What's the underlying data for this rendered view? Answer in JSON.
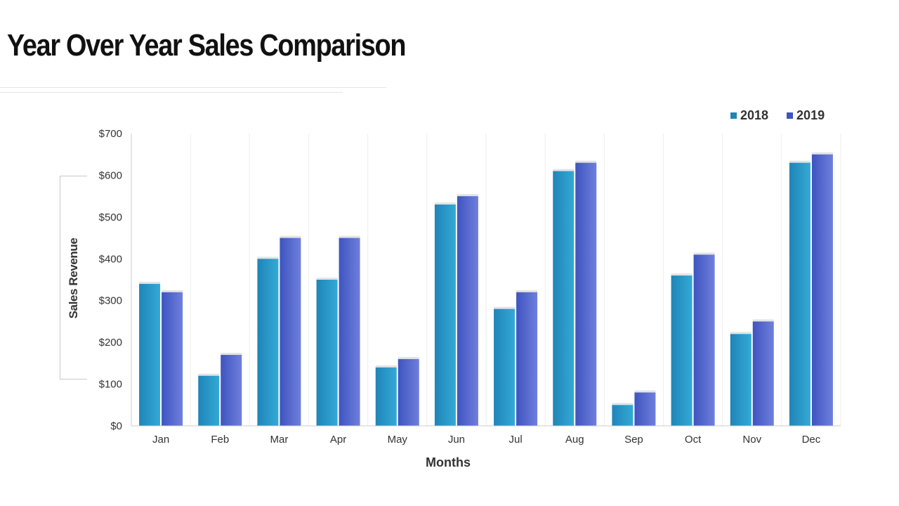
{
  "page": {
    "title": "Year Over Year Sales Comparison"
  },
  "colors": {
    "series_2018_light": "#34a9d6",
    "series_2018_dark": "#1f85b8",
    "series_2019_light": "#6f7fdc",
    "series_2019_dark": "#3e54c0",
    "grid": "#eeeeee",
    "axis": "#cccccc"
  },
  "chart_data": {
    "type": "bar",
    "categories": [
      "Jan",
      "Feb",
      "Mar",
      "Apr",
      "May",
      "Jun",
      "Jul",
      "Aug",
      "Sep",
      "Oct",
      "Nov",
      "Dec"
    ],
    "series": [
      {
        "name": "2018",
        "values": [
          340,
          120,
          400,
          350,
          140,
          530,
          280,
          610,
          50,
          360,
          220,
          630
        ]
      },
      {
        "name": "2019",
        "values": [
          320,
          170,
          450,
          450,
          160,
          550,
          320,
          630,
          80,
          410,
          250,
          650
        ]
      }
    ],
    "xlabel": "Months",
    "ylabel": "Sales Revenue",
    "ylim": [
      0,
      700
    ],
    "yticks": [
      0,
      100,
      200,
      300,
      400,
      500,
      600,
      700
    ],
    "ytick_labels": [
      "$0",
      "$100",
      "$200",
      "$300",
      "$400",
      "$500",
      "$600",
      "$700"
    ],
    "legend_position": "top-right",
    "grid": "vertical"
  }
}
